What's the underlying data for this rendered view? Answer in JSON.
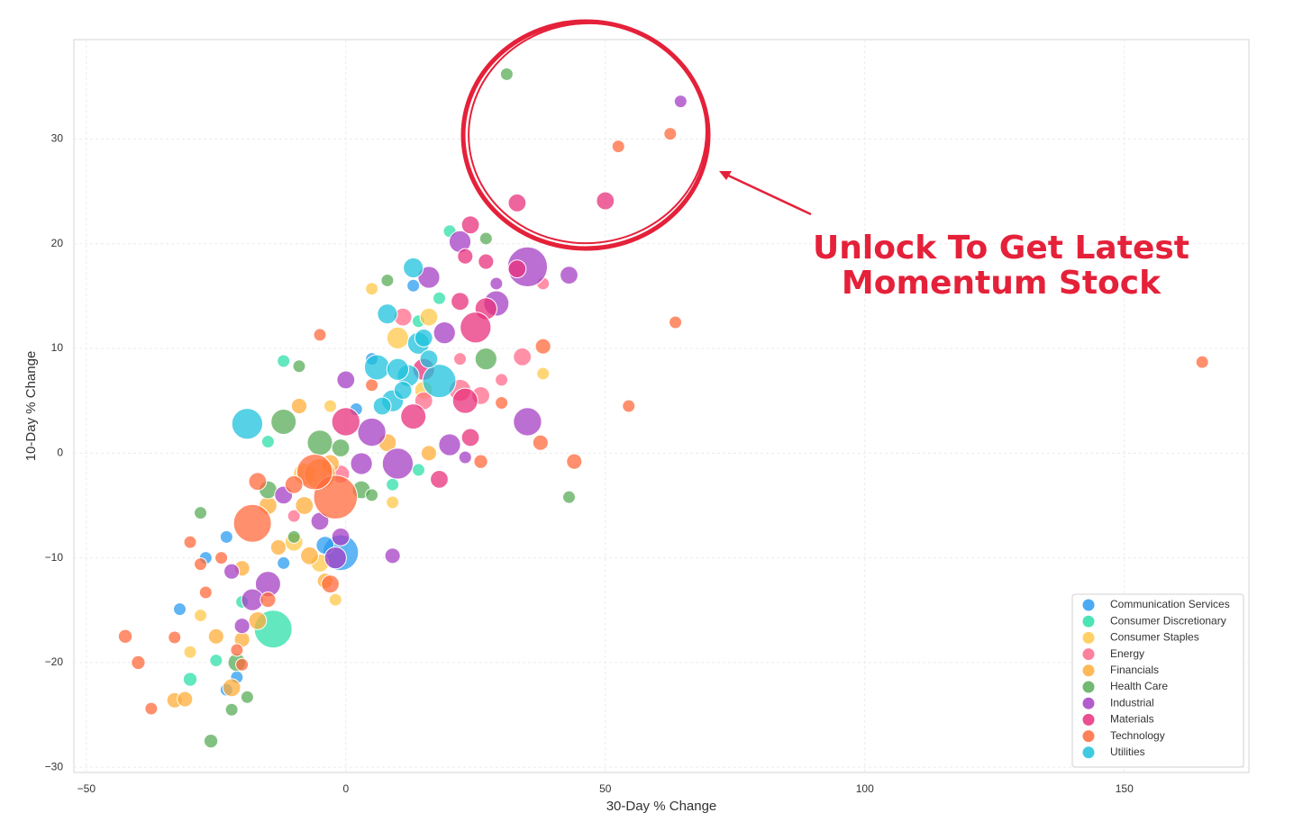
{
  "chart_data": {
    "type": "scatter",
    "xlabel": "30-Day % Change",
    "ylabel": "10-Day % Change",
    "annotation": [
      "Unlock To Get Latest",
      "Momentum Stock"
    ],
    "xlim": [
      -52.4,
      174
    ],
    "ylim": [
      -30.5,
      39.5
    ],
    "xticks": [
      {
        "value": -50,
        "label": "−50"
      },
      0,
      50,
      100,
      150
    ],
    "yticks": [
      {
        "value": -30,
        "label": "−30"
      },
      {
        "value": -20,
        "label": "−20"
      },
      {
        "value": -10,
        "label": "−10"
      },
      0,
      10,
      20,
      30
    ],
    "grid": true,
    "legend": "lower right",
    "series": [
      {
        "name": "Communication Services",
        "color": "#2b9cf0",
        "x": [
          -32,
          -23,
          -21,
          -23,
          -1,
          -4,
          2,
          13,
          5,
          -27,
          -12
        ],
        "values": [
          -14.9,
          -22.6,
          -21.4,
          -8,
          -9.5,
          -8.8,
          4.2,
          16,
          9,
          -10,
          -10.5
        ],
        "sizes": [
          1,
          1,
          1,
          1,
          8,
          2,
          1,
          1,
          1,
          1,
          1
        ]
      },
      {
        "name": "Consumer Discretionary",
        "color": "#2ddfa8",
        "x": [
          20,
          -12,
          -15,
          -14,
          -30,
          -25,
          9,
          14,
          18,
          14,
          -20
        ],
        "values": [
          21.2,
          8.8,
          1.1,
          -16.8,
          -21.6,
          -19.8,
          -3,
          -1.6,
          14.8,
          12.6,
          -14.2
        ],
        "sizes": [
          1,
          1,
          1,
          9,
          1.2,
          1,
          1,
          1,
          1,
          1,
          1
        ]
      },
      {
        "name": "Consumer Staples",
        "color": "#ffc84a",
        "x": [
          5,
          38,
          9,
          -10,
          -5,
          -2,
          -28,
          -30,
          10,
          16,
          15,
          -3,
          -8
        ],
        "values": [
          15.7,
          7.6,
          -4.7,
          -8.5,
          -10.5,
          -14,
          -15.5,
          -19,
          11,
          13,
          6,
          4.5,
          -2
        ],
        "sizes": [
          1,
          1,
          1,
          2,
          2,
          1,
          1,
          1,
          3,
          2,
          2,
          1,
          3
        ]
      },
      {
        "name": "Energy",
        "color": "#ff6b8b",
        "x": [
          34,
          26,
          22,
          30,
          -1,
          22,
          15,
          -10,
          11,
          38
        ],
        "values": [
          9.2,
          5.5,
          6,
          7,
          -2,
          9,
          5,
          -6,
          13,
          16.2
        ],
        "sizes": [
          2,
          2,
          3,
          1,
          2,
          1,
          2,
          1,
          2,
          1
        ]
      },
      {
        "name": "Financials",
        "color": "#ffad3a",
        "x": [
          -33,
          -31,
          -22,
          -25,
          -20,
          -20,
          -17,
          -13,
          -7,
          -4,
          -8,
          -3,
          -9,
          8,
          16,
          -15,
          -5
        ],
        "values": [
          -23.6,
          -23.5,
          -22.4,
          -17.5,
          -17.8,
          -11,
          -16,
          -9,
          -9.8,
          -12.2,
          -5,
          -1,
          4.5,
          1,
          0,
          -5,
          -2
        ],
        "sizes": [
          1.5,
          1.5,
          2,
          1.5,
          1.5,
          1.5,
          2,
          1.5,
          2,
          1.5,
          2,
          2,
          1.5,
          2,
          1.5,
          2,
          6
        ]
      },
      {
        "name": "Health Care",
        "color": "#5aac5a",
        "x": [
          31,
          43,
          -28,
          -9,
          -12,
          -5,
          -1,
          27,
          8,
          -21,
          -22,
          -19,
          -26,
          -15,
          3,
          5,
          27,
          -10
        ],
        "values": [
          36.2,
          -4.2,
          -5.7,
          8.3,
          3,
          1,
          0.5,
          20.5,
          16.5,
          -20,
          -24.5,
          -23.3,
          -27.5,
          -3.5,
          -3.5,
          -4,
          9,
          -8
        ],
        "sizes": [
          1,
          1,
          1,
          1,
          4,
          4,
          2,
          1,
          1,
          2,
          1,
          1,
          1.2,
          2,
          2,
          1,
          3,
          1
        ]
      },
      {
        "name": "Industrial",
        "color": "#a63fc4",
        "x": [
          64.5,
          35,
          43,
          29,
          22,
          16,
          29,
          35,
          10,
          9,
          -1,
          -15,
          -18,
          -20,
          -2,
          5,
          -12,
          20,
          23,
          3,
          -22,
          -5,
          19,
          0
        ],
        "values": [
          33.6,
          17.8,
          17,
          16.2,
          20.2,
          16.8,
          14.3,
          3,
          -1,
          -9.8,
          -8,
          -12.5,
          -14,
          -16.5,
          -10,
          2,
          -4,
          0.8,
          -0.4,
          -1,
          -11.3,
          -6.5,
          11.5,
          7
        ],
        "sizes": [
          1,
          10,
          2,
          1,
          3,
          3,
          4,
          5,
          6,
          1.5,
          2,
          4,
          3,
          1.5,
          3,
          5,
          2,
          3,
          1,
          3,
          1.5,
          2,
          3,
          2
        ]
      },
      {
        "name": "Materials",
        "color": "#e8307b",
        "x": [
          33,
          50,
          24,
          23,
          27,
          33,
          27,
          25,
          13,
          23,
          18,
          22,
          15,
          0,
          24
        ],
        "values": [
          23.9,
          24.1,
          21.8,
          18.8,
          18.3,
          17.6,
          13.8,
          12,
          3.5,
          5,
          -2.5,
          14.5,
          8,
          3,
          1.5
        ],
        "sizes": [
          2,
          2,
          2,
          1.5,
          1.5,
          2,
          3,
          6,
          4,
          4,
          2,
          2,
          3,
          5,
          2
        ]
      },
      {
        "name": "Technology",
        "color": "#ff6a3c",
        "x": [
          165,
          62.5,
          52.5,
          63.5,
          54.5,
          44,
          38,
          37.5,
          -42.5,
          -40,
          -37.5,
          -33,
          -30,
          -28,
          -27,
          -24,
          -18,
          -17,
          -2,
          -6,
          -5,
          30,
          26,
          -20,
          -21,
          -15,
          -10,
          5,
          -3
        ],
        "values": [
          8.7,
          30.5,
          29.3,
          12.5,
          4.5,
          -0.8,
          10.2,
          1,
          -17.5,
          -20,
          -24.4,
          -17.6,
          -8.5,
          -10.6,
          -13.3,
          -10,
          -6.7,
          -2.7,
          -4.2,
          -1.8,
          11.3,
          4.8,
          -0.8,
          -20.2,
          -18.8,
          -14,
          -3,
          6.5,
          -12.5
        ],
        "sizes": [
          1,
          1,
          1,
          1,
          1,
          1.5,
          1.5,
          1.5,
          1.2,
          1.2,
          1,
          1,
          1,
          1,
          1,
          1,
          9,
          2,
          12,
          8,
          1,
          1,
          1.2,
          1,
          1,
          1.5,
          2,
          1,
          2
        ]
      },
      {
        "name": "Utilities",
        "color": "#1fc1dc",
        "x": [
          -19,
          13,
          8,
          6,
          9,
          12,
          14,
          15,
          18,
          10,
          11,
          7,
          16
        ],
        "values": [
          2.8,
          17.7,
          13.3,
          8.2,
          5,
          7.4,
          10.5,
          11,
          6.9,
          8,
          6,
          4.5,
          9
        ],
        "sizes": [
          6,
          2.5,
          2.5,
          4,
          3,
          3,
          3,
          2,
          7,
          3,
          2,
          2,
          2
        ]
      }
    ]
  }
}
